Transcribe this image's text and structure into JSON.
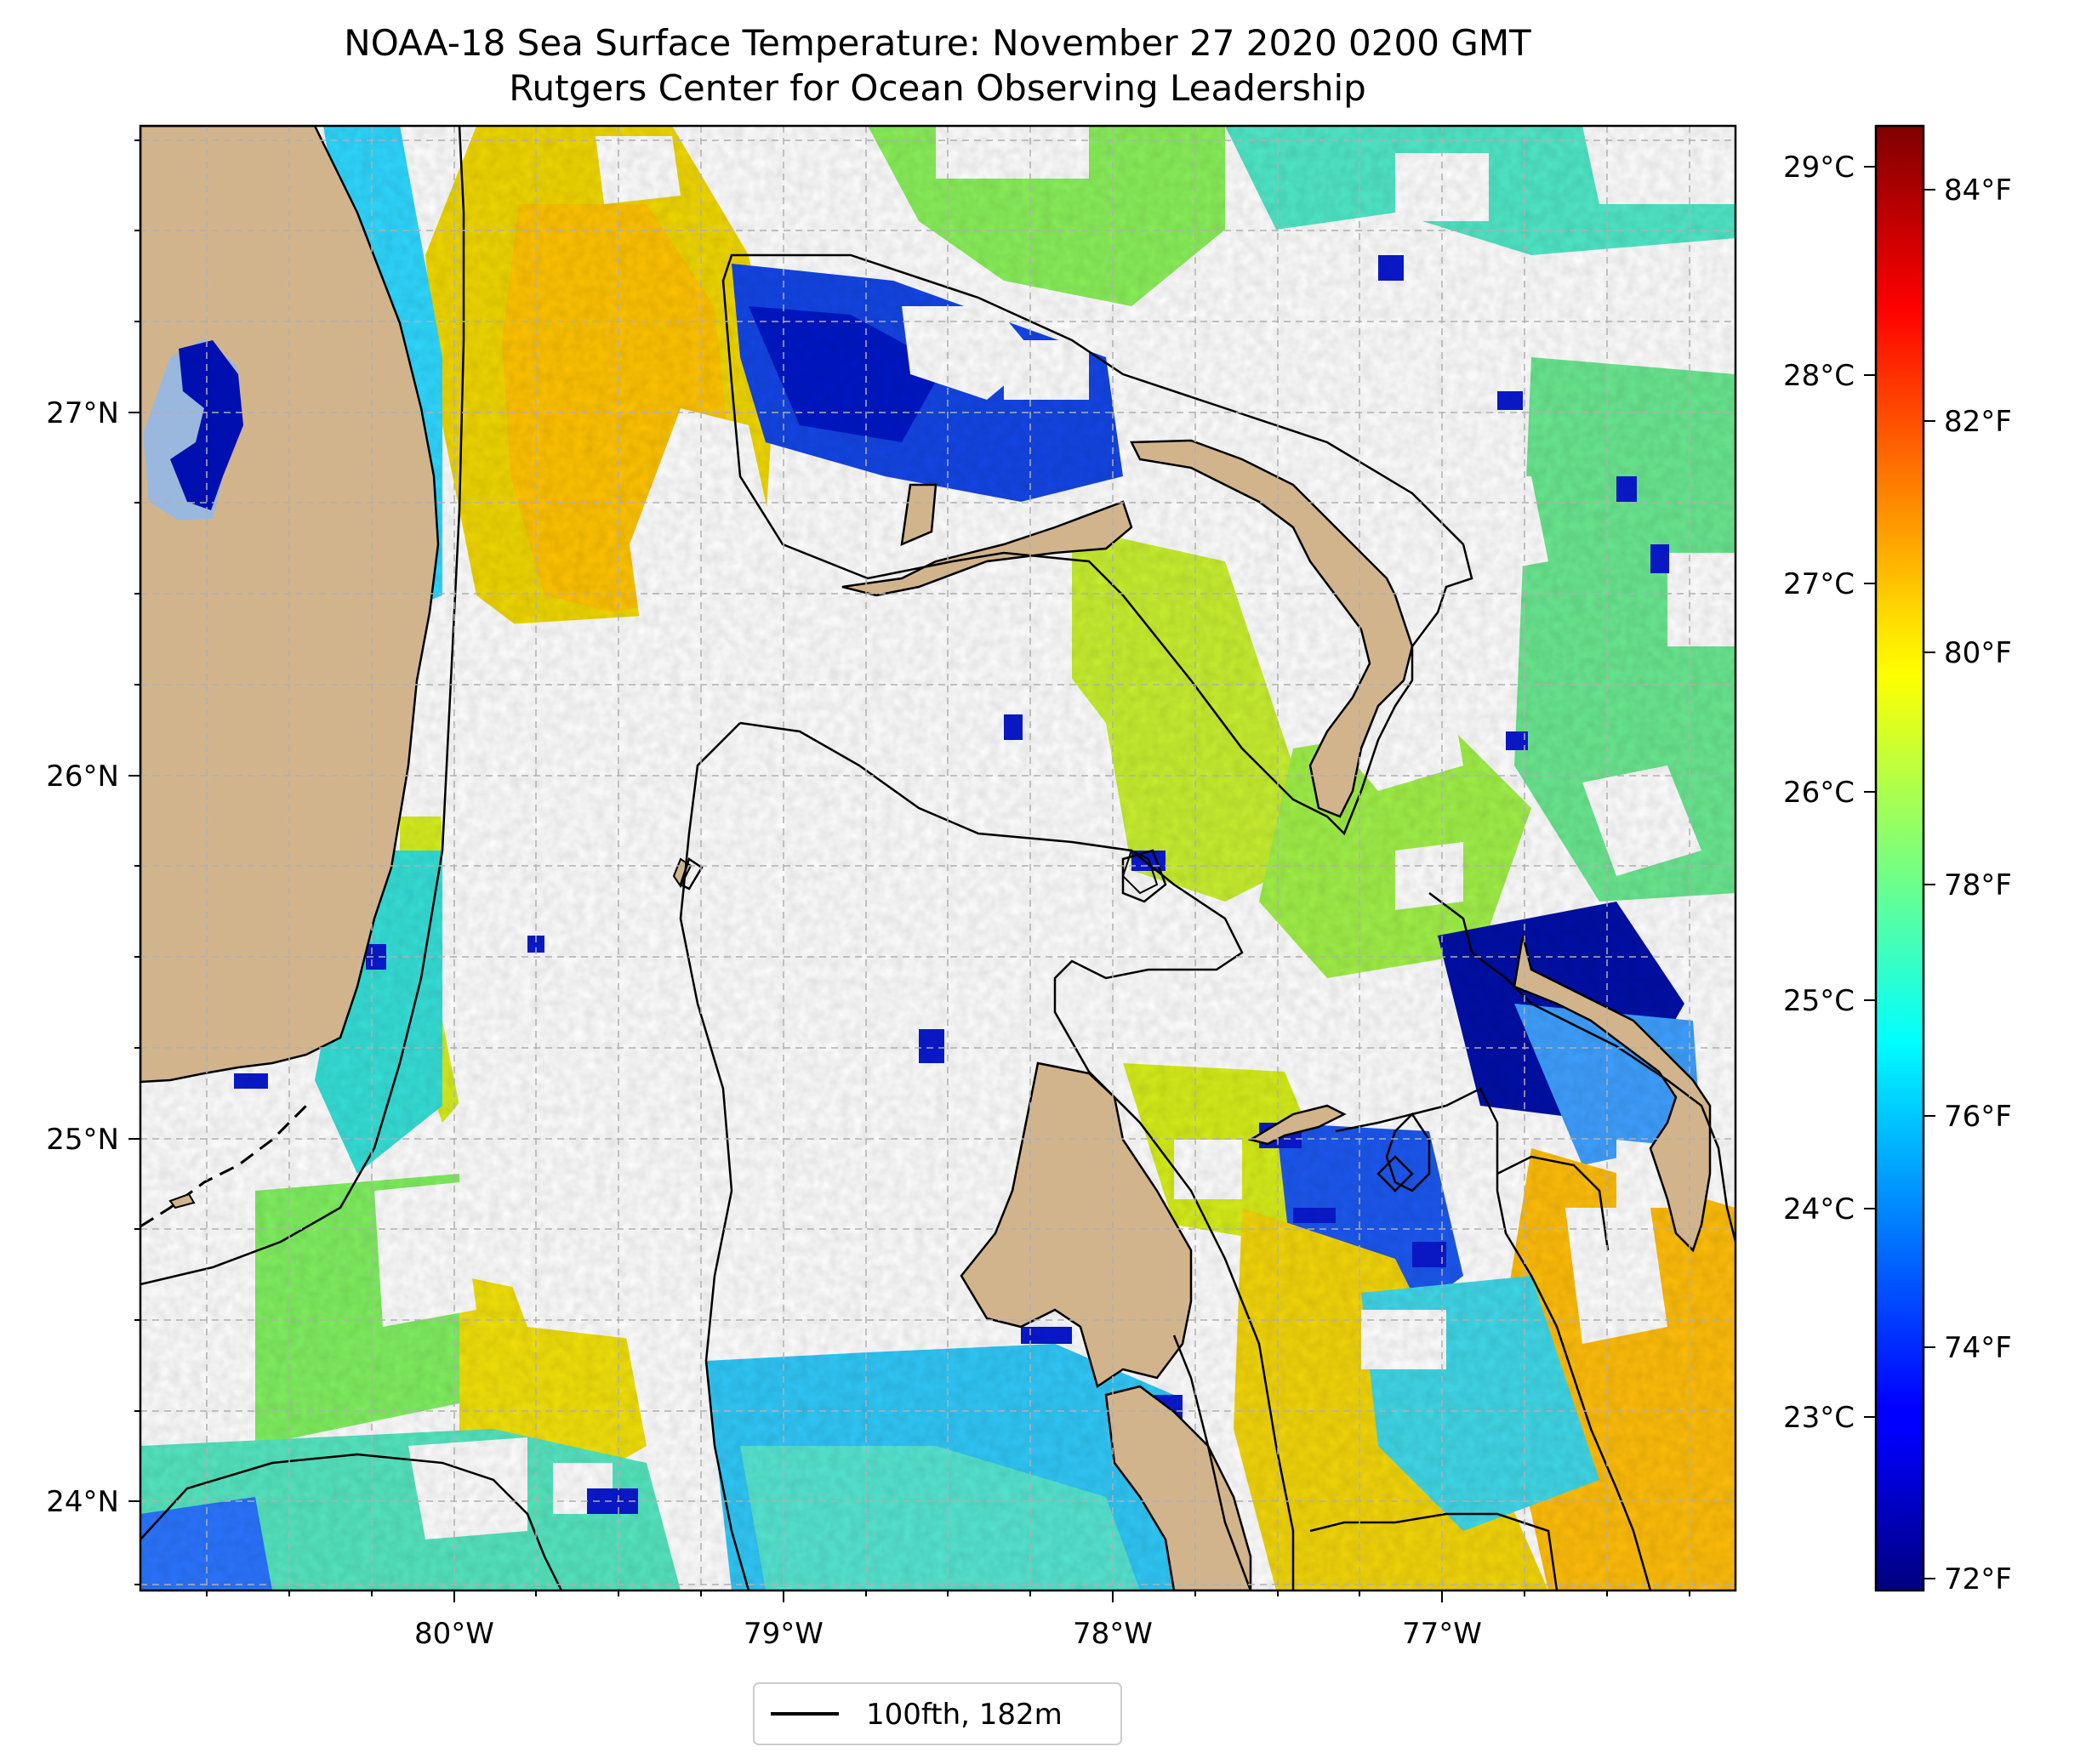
{
  "title_line1": "NOAA-18 Sea Surface Temperature: November 27 2020 0200 GMT",
  "title_line2": "Rutgers Center for Ocean Observing Leadership",
  "lon_ticks": [
    "80°W",
    "79°W",
    "78°W",
    "77°W"
  ],
  "lat_ticks": [
    "27°N",
    "26°N",
    "25°N",
    "24°N"
  ],
  "colorbar": {
    "celsius_ticks": [
      "29°C",
      "28°C",
      "27°C",
      "26°C",
      "25°C",
      "24°C",
      "23°C"
    ],
    "fahrenheit_ticks": [
      "84°F",
      "82°F",
      "80°F",
      "78°F",
      "76°F",
      "74°F",
      "72°F"
    ],
    "colormap": "jet"
  },
  "legend": {
    "label": "100fth, 182m"
  },
  "colors": {
    "land": "#d2b48c",
    "lake": "#9ab8de",
    "cold": "#00008b",
    "warm": "#8b0000"
  },
  "chart_data": {
    "type": "heatmap",
    "title": "NOAA-18 Sea Surface Temperature: November 27 2020 0200 GMT",
    "subtitle": "Rutgers Center for Ocean Observing Leadership",
    "xlabel": "",
    "ylabel": "",
    "x_ticks": [
      "80°W",
      "79°W",
      "78°W",
      "77°W"
    ],
    "y_ticks": [
      "27°N",
      "26°N",
      "25°N",
      "24°N"
    ],
    "colorbar_range_F": [
      72,
      84
    ],
    "grid": true,
    "legend_placement": "bottom-center"
  }
}
